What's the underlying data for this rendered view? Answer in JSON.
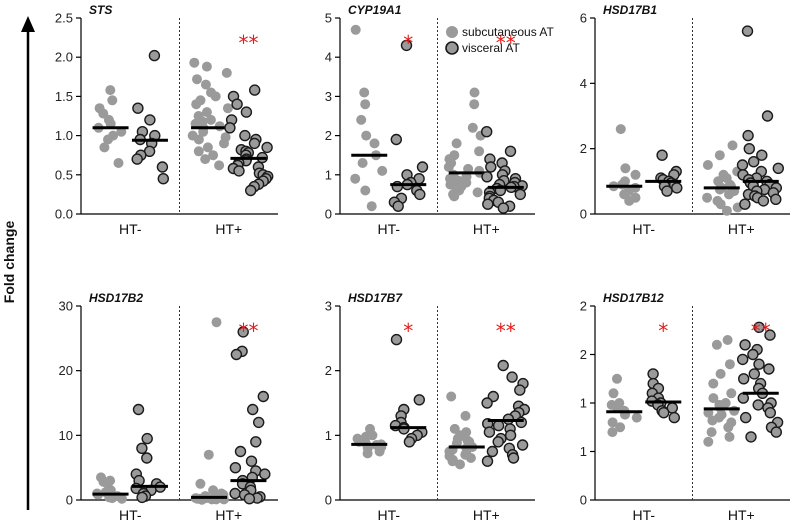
{
  "figure": {
    "ylabel": "Fold change",
    "legend": {
      "entries": [
        {
          "name": "subcutaneous AT",
          "color": "#9a9a9a"
        },
        {
          "name": "visceral AT",
          "color": "#9a9a9a",
          "outlined": true
        }
      ]
    }
  },
  "colors": {
    "subcutaneous": "#9a9a9a",
    "visceral_fill": "#9a9a9a",
    "visceral_stroke": "#1a1a1a",
    "median": "#000000",
    "significance": "#e02020"
  },
  "chart_data": [
    {
      "type": "scatter",
      "title": "STS",
      "ylim": [
        0,
        2.5
      ],
      "yticks": [
        "0.0",
        "0.5",
        "1.0",
        "1.5",
        "2.0",
        "2.5"
      ],
      "ytick_values": [
        0,
        0.5,
        1,
        1.5,
        2,
        2.5
      ],
      "groups": [
        {
          "label": "HT-",
          "subcutaneous": {
            "median": 1.1,
            "values": [
              1.58,
              1.45,
              1.35,
              1.28,
              1.2,
              1.15,
              1.1,
              1.05,
              1.0,
              0.95,
              0.85,
              0.65
            ]
          },
          "visceral": {
            "median": 0.94,
            "values": [
              2.02,
              1.35,
              1.2,
              1.05,
              1.0,
              0.95,
              0.9,
              0.8,
              0.75,
              0.7,
              0.6,
              0.45
            ]
          },
          "stars": [
            "",
            ""
          ]
        },
        {
          "label": "HT+",
          "subcutaneous": {
            "median": 1.1,
            "values": [
              1.93,
              1.88,
              1.8,
              1.72,
              1.65,
              1.55,
              1.5,
              1.45,
              1.4,
              1.35,
              1.3,
              1.25,
              1.2,
              1.18,
              1.15,
              1.12,
              1.1,
              1.05,
              1.0,
              0.98,
              0.95,
              0.9,
              0.85,
              0.8,
              0.75,
              0.7,
              0.62
            ]
          },
          "visceral": {
            "median": 0.71,
            "values": [
              1.58,
              1.5,
              1.4,
              1.3,
              1.2,
              1.1,
              1.0,
              0.95,
              0.9,
              0.85,
              0.82,
              0.8,
              0.78,
              0.75,
              0.72,
              0.7,
              0.68,
              0.65,
              0.62,
              0.6,
              0.58,
              0.55,
              0.52,
              0.5,
              0.48,
              0.45,
              0.42,
              0.38,
              0.35,
              0.3
            ]
          },
          "stars": [
            "",
            "**"
          ]
        }
      ]
    },
    {
      "type": "scatter",
      "title": "CYP19A1",
      "ylim": [
        0,
        5
      ],
      "yticks": [
        "0",
        "1",
        "2",
        "3",
        "4",
        "5"
      ],
      "ytick_values": [
        0,
        1,
        2,
        3,
        4,
        5
      ],
      "groups": [
        {
          "label": "HT-",
          "subcutaneous": {
            "median": 1.5,
            "values": [
              4.7,
              3.1,
              2.8,
              2.4,
              2.0,
              1.8,
              1.5,
              1.3,
              1.1,
              0.9,
              0.6,
              0.2
            ]
          },
          "visceral": {
            "median": 0.75,
            "values": [
              4.3,
              1.9,
              1.2,
              1.0,
              0.9,
              0.8,
              0.75,
              0.7,
              0.6,
              0.5,
              0.4,
              0.3,
              0.2
            ]
          },
          "stars": [
            "",
            "*"
          ]
        },
        {
          "label": "HT+",
          "subcutaneous": {
            "median": 1.05,
            "values": [
              3.1,
              2.8,
              2.2,
              2.0,
              1.8,
              1.6,
              1.5,
              1.4,
              1.3,
              1.2,
              1.15,
              1.1,
              1.05,
              1.0,
              0.95,
              0.9,
              0.85,
              0.8,
              0.75,
              0.7,
              0.65,
              0.6,
              0.55,
              0.5,
              0.45
            ]
          },
          "visceral": {
            "median": 0.68,
            "values": [
              2.1,
              1.6,
              1.4,
              1.3,
              1.2,
              1.1,
              1.0,
              0.95,
              0.9,
              0.85,
              0.8,
              0.75,
              0.72,
              0.7,
              0.68,
              0.65,
              0.6,
              0.55,
              0.5,
              0.45,
              0.4,
              0.35,
              0.3,
              0.25,
              0.2,
              0.15
            ]
          },
          "stars": [
            "",
            "**"
          ]
        }
      ]
    },
    {
      "type": "scatter",
      "title": "HSD17B1",
      "ylim": [
        0,
        6
      ],
      "yticks": [
        "0",
        "2",
        "4",
        "6"
      ],
      "ytick_values": [
        0,
        2,
        4,
        6
      ],
      "groups": [
        {
          "label": "HT-",
          "subcutaneous": {
            "median": 0.85,
            "values": [
              2.6,
              1.4,
              1.2,
              1.0,
              0.9,
              0.85,
              0.8,
              0.7,
              0.6,
              0.5,
              0.4
            ]
          },
          "visceral": {
            "median": 1.0,
            "values": [
              1.8,
              1.3,
              1.2,
              1.1,
              1.05,
              1.0,
              0.95,
              0.9,
              0.85,
              0.8,
              0.7
            ]
          },
          "stars": [
            "",
            ""
          ]
        },
        {
          "label": "HT+",
          "subcutaneous": {
            "median": 0.8,
            "values": [
              2.1,
              1.8,
              1.5,
              1.3,
              1.2,
              1.1,
              1.0,
              0.9,
              0.85,
              0.8,
              0.75,
              0.7,
              0.6,
              0.5,
              0.4,
              0.3,
              0.2,
              0.1
            ]
          },
          "visceral": {
            "median": 1.0,
            "values": [
              5.6,
              3.0,
              2.4,
              2.0,
              1.8,
              1.6,
              1.5,
              1.4,
              1.3,
              1.2,
              1.1,
              1.05,
              1.0,
              0.95,
              0.9,
              0.85,
              0.8,
              0.75,
              0.7,
              0.65,
              0.6,
              0.55,
              0.5,
              0.45,
              0.4,
              0.3
            ]
          },
          "stars": [
            "",
            ""
          ]
        }
      ]
    },
    {
      "type": "scatter",
      "title": "HSD17B2",
      "ylim": [
        0,
        30
      ],
      "yticks": [
        "0",
        "10",
        "20",
        "30"
      ],
      "ytick_values": [
        0,
        10,
        20,
        30
      ],
      "groups": [
        {
          "label": "HT-",
          "subcutaneous": {
            "median": 0.9,
            "values": [
              3.5,
              3.0,
              2.8,
              2.5,
              1.5,
              1.2,
              1.0,
              0.8,
              0.6,
              0.4,
              0.3,
              0.2
            ]
          },
          "visceral": {
            "median": 2.1,
            "values": [
              14.0,
              9.5,
              8.0,
              6.5,
              4.0,
              3.0,
              2.5,
              2.0,
              1.8,
              1.5,
              1.0,
              0.6,
              0.4
            ]
          },
          "stars": [
            "",
            ""
          ]
        },
        {
          "label": "HT+",
          "subcutaneous": {
            "median": 0.4,
            "values": [
              27.5,
              7.0,
              2.5,
              1.5,
              1.0,
              0.8,
              0.6,
              0.5,
              0.4,
              0.3,
              0.3,
              0.2,
              0.2,
              0.1,
              0.1,
              0.1,
              0.05
            ]
          },
          "visceral": {
            "median": 3.0,
            "values": [
              26.0,
              23.0,
              22.5,
              16.0,
              14.0,
              12.0,
              9.0,
              7.5,
              6.0,
              5.0,
              4.5,
              4.0,
              3.5,
              3.0,
              2.5,
              2.0,
              1.5,
              1.0,
              0.8,
              0.5,
              0.3,
              0.2
            ]
          },
          "stars": [
            "",
            "**"
          ]
        }
      ]
    },
    {
      "type": "scatter",
      "title": "HSD17B7",
      "ylim": [
        0,
        3
      ],
      "yticks": [
        "0",
        "1",
        "2",
        "3"
      ],
      "ytick_values": [
        0,
        1,
        2,
        3
      ],
      "groups": [
        {
          "label": "HT-",
          "subcutaneous": {
            "median": 0.86,
            "values": [
              1.1,
              1.0,
              0.98,
              0.95,
              0.9,
              0.88,
              0.86,
              0.85,
              0.82,
              0.8,
              0.75,
              0.72
            ]
          },
          "visceral": {
            "median": 1.12,
            "values": [
              2.48,
              1.55,
              1.4,
              1.3,
              1.2,
              1.15,
              1.12,
              1.1,
              1.05,
              1.0,
              0.95,
              0.9
            ]
          },
          "stars": [
            "",
            "*"
          ]
        },
        {
          "label": "HT+",
          "subcutaneous": {
            "median": 0.82,
            "values": [
              1.6,
              1.3,
              1.1,
              1.05,
              1.0,
              0.95,
              0.92,
              0.9,
              0.88,
              0.85,
              0.82,
              0.8,
              0.78,
              0.75,
              0.72,
              0.7,
              0.68,
              0.65,
              0.62,
              0.6,
              0.55
            ]
          },
          "visceral": {
            "median": 1.23,
            "values": [
              2.08,
              1.9,
              1.8,
              1.7,
              1.6,
              1.5,
              1.45,
              1.4,
              1.35,
              1.3,
              1.25,
              1.2,
              1.18,
              1.15,
              1.1,
              1.05,
              1.0,
              0.95,
              0.9,
              0.85,
              0.8,
              0.75,
              0.7,
              0.65,
              0.6
            ]
          },
          "stars": [
            "",
            "**"
          ]
        }
      ]
    },
    {
      "type": "scatter",
      "title": "HSD17B12",
      "ylim": [
        0,
        2
      ],
      "yticks": [
        "0",
        "1",
        "1",
        "2",
        "2"
      ],
      "ytick_values": [
        0,
        0.5,
        1,
        1.5,
        2
      ],
      "groups": [
        {
          "label": "HT-",
          "subcutaneous": {
            "median": 0.91,
            "values": [
              1.25,
              1.1,
              1.0,
              0.98,
              0.95,
              0.92,
              0.9,
              0.88,
              0.85,
              0.8,
              0.75,
              0.7
            ]
          },
          "visceral": {
            "median": 1.01,
            "values": [
              1.3,
              1.2,
              1.15,
              1.1,
              1.05,
              1.02,
              1.0,
              0.98,
              0.95,
              0.92,
              0.9,
              0.85
            ]
          },
          "stars": [
            "",
            "*"
          ]
        },
        {
          "label": "HT+",
          "subcutaneous": {
            "median": 0.94,
            "values": [
              1.65,
              1.6,
              1.4,
              1.3,
              1.2,
              1.1,
              1.05,
              1.0,
              0.98,
              0.95,
              0.92,
              0.9,
              0.88,
              0.85,
              0.82,
              0.8,
              0.75,
              0.7,
              0.65,
              0.6
            ]
          },
          "visceral": {
            "median": 1.1,
            "values": [
              1.78,
              1.7,
              1.6,
              1.55,
              1.5,
              1.45,
              1.4,
              1.35,
              1.3,
              1.25,
              1.2,
              1.15,
              1.1,
              1.05,
              1.0,
              0.98,
              0.95,
              0.9,
              0.85,
              0.8,
              0.75,
              0.7,
              0.65
            ]
          },
          "stars": [
            "",
            "**"
          ]
        }
      ]
    }
  ]
}
